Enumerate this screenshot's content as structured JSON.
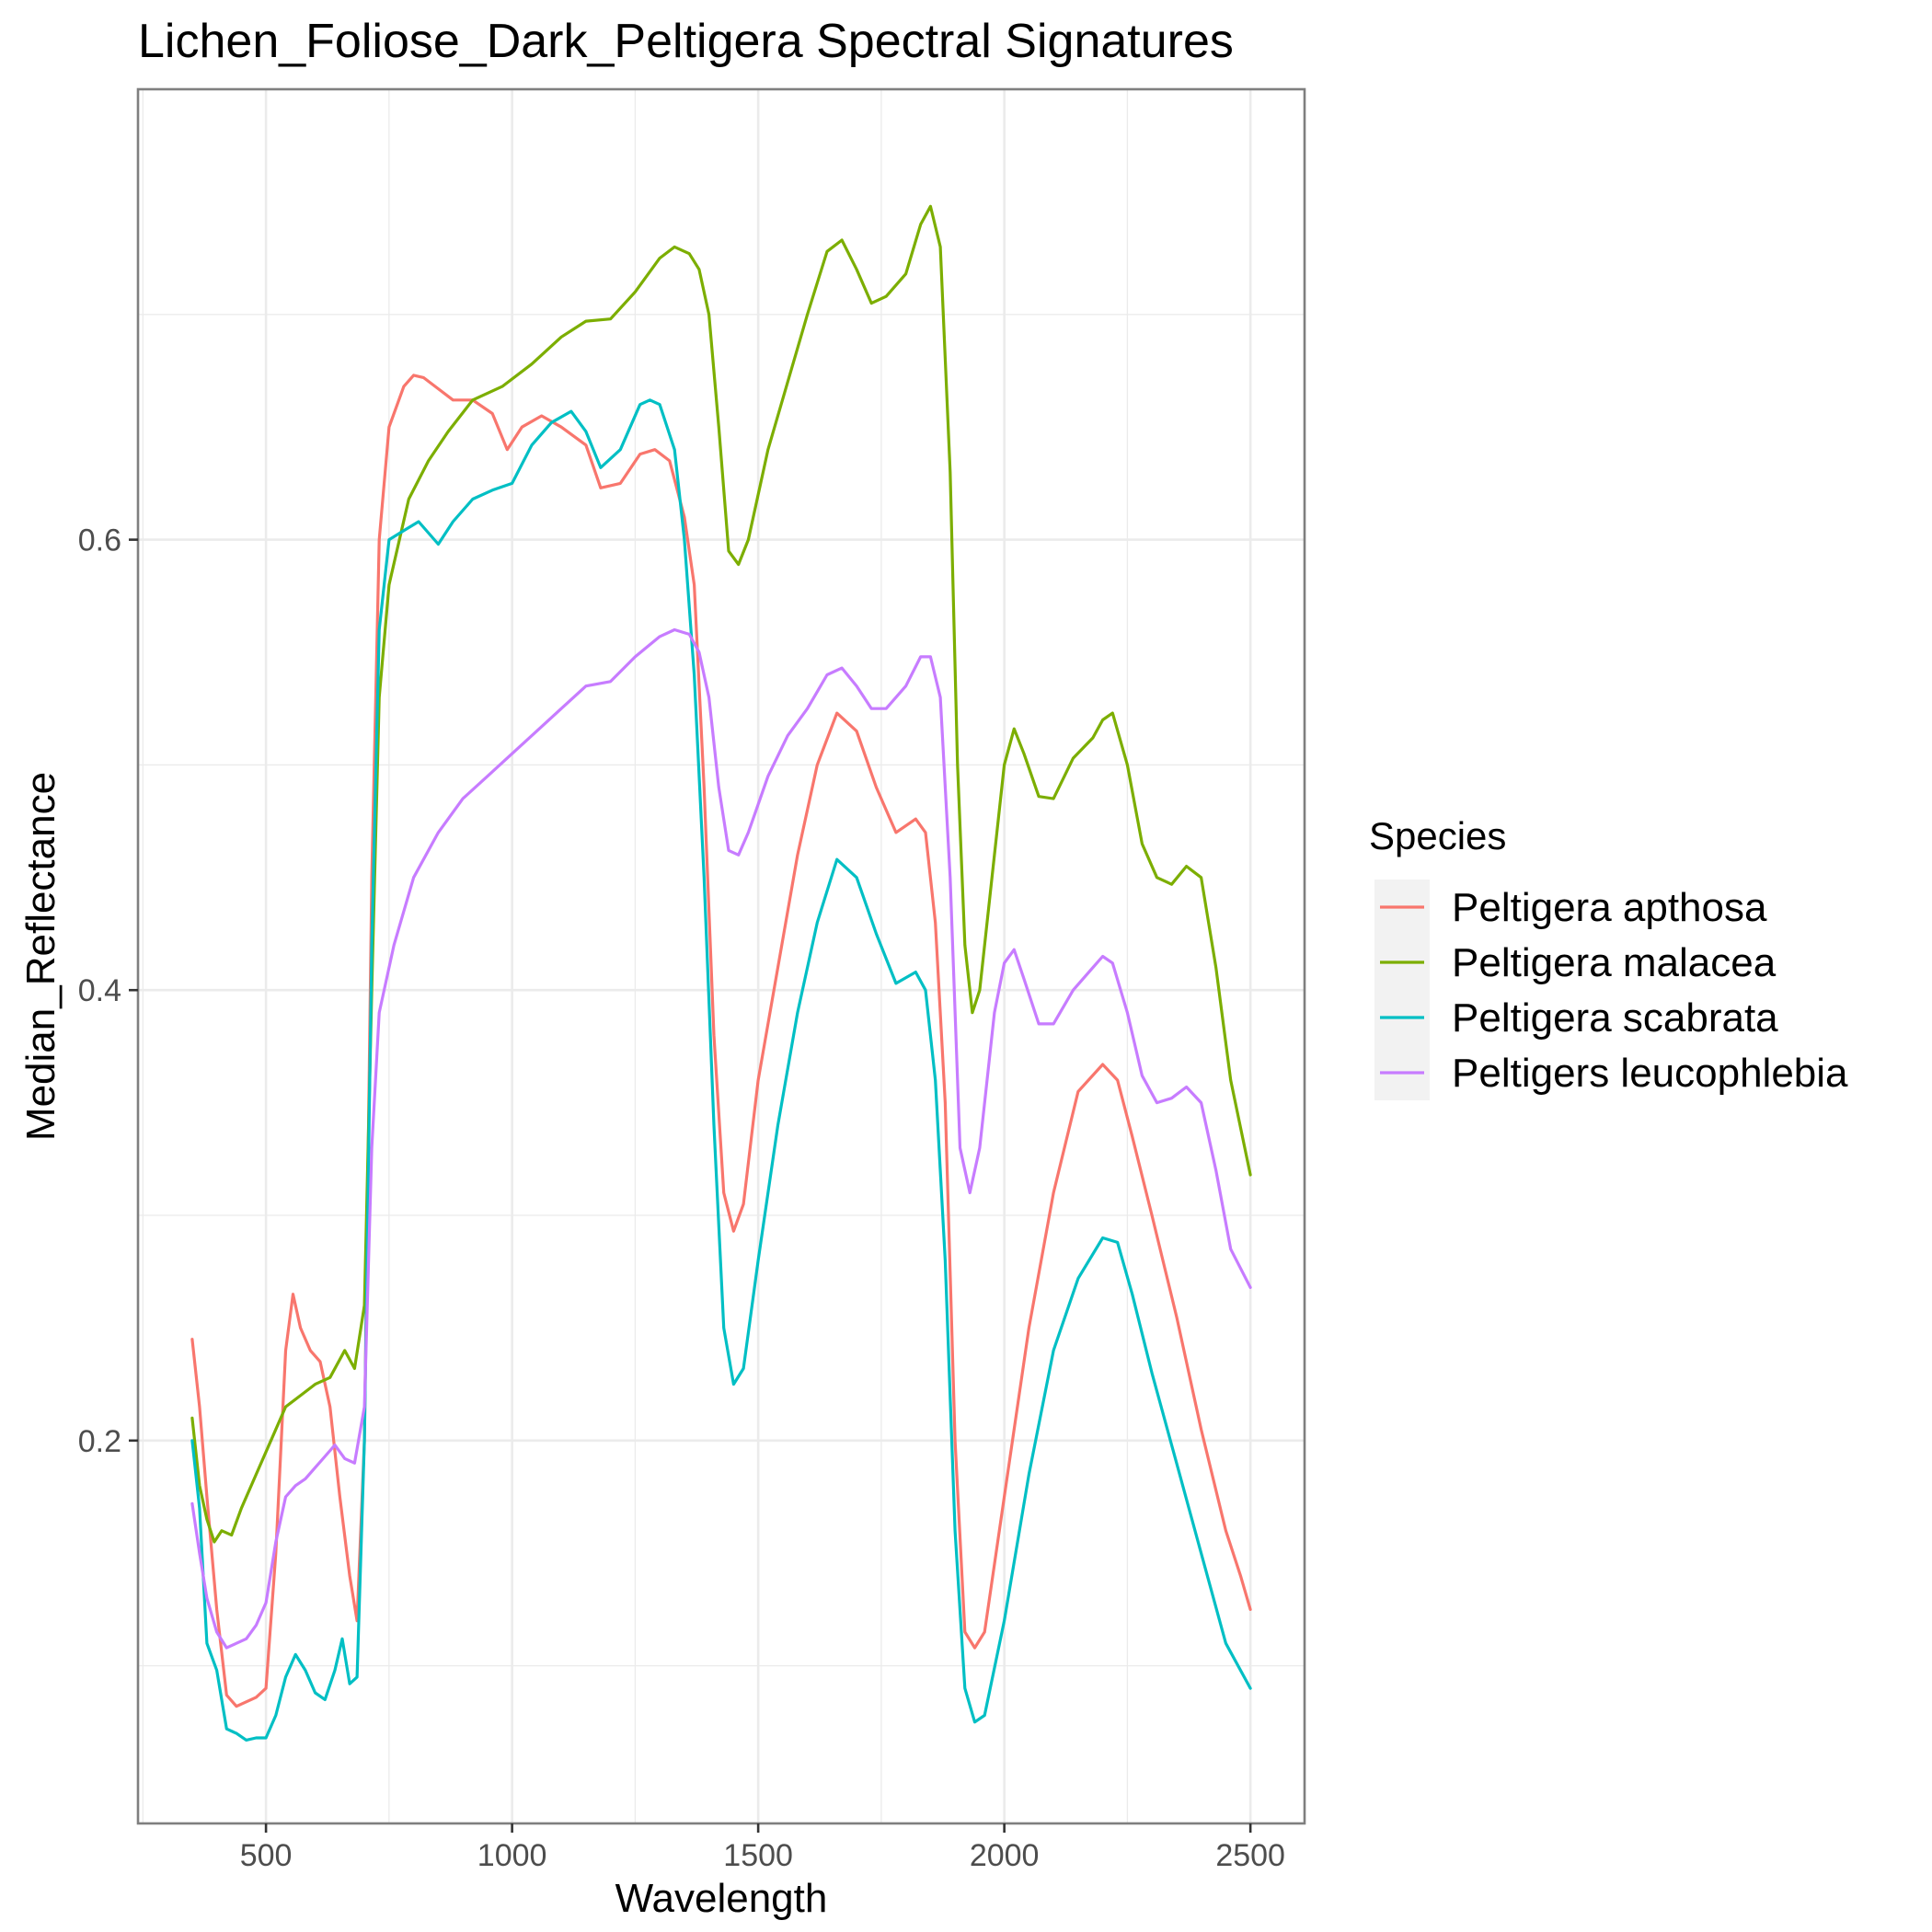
{
  "chart_data": {
    "type": "line",
    "title": "Lichen_Foliose_Dark_Peltigera Spectral Signatures",
    "xlabel": "Wavelength",
    "ylabel": "Median_Reflectance",
    "xlim": [
      240,
      2610
    ],
    "ylim": [
      0.03,
      0.8
    ],
    "x_ticks": [
      500,
      1000,
      1500,
      2000,
      2500
    ],
    "x_tick_labels": [
      "500",
      "1000",
      "1500",
      "2000",
      "2500"
    ],
    "y_ticks": [
      0.2,
      0.4,
      0.6
    ],
    "y_tick_labels": [
      "0.2",
      "0.4",
      "0.6"
    ],
    "grid": true,
    "legend": {
      "title": "Species",
      "position": "right"
    },
    "series": [
      {
        "name": "Peltigera apthosa",
        "color": "#F8766D",
        "points": [
          [
            350,
            0.245
          ],
          [
            365,
            0.215
          ],
          [
            380,
            0.175
          ],
          [
            400,
            0.125
          ],
          [
            420,
            0.087
          ],
          [
            440,
            0.082
          ],
          [
            460,
            0.084
          ],
          [
            480,
            0.086
          ],
          [
            500,
            0.09
          ],
          [
            520,
            0.15
          ],
          [
            540,
            0.24
          ],
          [
            555,
            0.265
          ],
          [
            570,
            0.25
          ],
          [
            590,
            0.24
          ],
          [
            610,
            0.235
          ],
          [
            630,
            0.215
          ],
          [
            650,
            0.175
          ],
          [
            670,
            0.14
          ],
          [
            685,
            0.12
          ],
          [
            700,
            0.2
          ],
          [
            715,
            0.45
          ],
          [
            730,
            0.6
          ],
          [
            750,
            0.65
          ],
          [
            780,
            0.668
          ],
          [
            800,
            0.673
          ],
          [
            820,
            0.672
          ],
          [
            850,
            0.667
          ],
          [
            880,
            0.662
          ],
          [
            920,
            0.662
          ],
          [
            960,
            0.656
          ],
          [
            990,
            0.64
          ],
          [
            1020,
            0.65
          ],
          [
            1060,
            0.655
          ],
          [
            1100,
            0.65
          ],
          [
            1150,
            0.642
          ],
          [
            1180,
            0.623
          ],
          [
            1220,
            0.625
          ],
          [
            1260,
            0.638
          ],
          [
            1290,
            0.64
          ],
          [
            1320,
            0.635
          ],
          [
            1350,
            0.61
          ],
          [
            1370,
            0.58
          ],
          [
            1390,
            0.49
          ],
          [
            1410,
            0.38
          ],
          [
            1430,
            0.31
          ],
          [
            1450,
            0.293
          ],
          [
            1470,
            0.305
          ],
          [
            1500,
            0.36
          ],
          [
            1540,
            0.41
          ],
          [
            1580,
            0.46
          ],
          [
            1620,
            0.5
          ],
          [
            1660,
            0.523
          ],
          [
            1700,
            0.515
          ],
          [
            1740,
            0.49
          ],
          [
            1780,
            0.47
          ],
          [
            1820,
            0.476
          ],
          [
            1840,
            0.47
          ],
          [
            1860,
            0.43
          ],
          [
            1880,
            0.35
          ],
          [
            1900,
            0.2
          ],
          [
            1920,
            0.115
          ],
          [
            1940,
            0.108
          ],
          [
            1960,
            0.115
          ],
          [
            2000,
            0.175
          ],
          [
            2050,
            0.25
          ],
          [
            2100,
            0.31
          ],
          [
            2150,
            0.355
          ],
          [
            2200,
            0.367
          ],
          [
            2230,
            0.36
          ],
          [
            2260,
            0.335
          ],
          [
            2300,
            0.3
          ],
          [
            2350,
            0.255
          ],
          [
            2400,
            0.205
          ],
          [
            2450,
            0.16
          ],
          [
            2480,
            0.14
          ],
          [
            2500,
            0.125
          ]
        ]
      },
      {
        "name": "Peltigera malacea",
        "color": "#7CAE00",
        "points": [
          [
            350,
            0.21
          ],
          [
            365,
            0.18
          ],
          [
            380,
            0.165
          ],
          [
            395,
            0.155
          ],
          [
            410,
            0.16
          ],
          [
            430,
            0.158
          ],
          [
            450,
            0.17
          ],
          [
            480,
            0.185
          ],
          [
            510,
            0.2
          ],
          [
            540,
            0.215
          ],
          [
            570,
            0.22
          ],
          [
            600,
            0.225
          ],
          [
            630,
            0.228
          ],
          [
            660,
            0.24
          ],
          [
            680,
            0.232
          ],
          [
            700,
            0.26
          ],
          [
            715,
            0.4
          ],
          [
            730,
            0.53
          ],
          [
            750,
            0.58
          ],
          [
            790,
            0.618
          ],
          [
            830,
            0.635
          ],
          [
            870,
            0.648
          ],
          [
            920,
            0.662
          ],
          [
            980,
            0.668
          ],
          [
            1040,
            0.678
          ],
          [
            1100,
            0.69
          ],
          [
            1150,
            0.697
          ],
          [
            1200,
            0.698
          ],
          [
            1250,
            0.71
          ],
          [
            1300,
            0.725
          ],
          [
            1330,
            0.73
          ],
          [
            1360,
            0.727
          ],
          [
            1380,
            0.72
          ],
          [
            1400,
            0.7
          ],
          [
            1420,
            0.65
          ],
          [
            1440,
            0.595
          ],
          [
            1460,
            0.589
          ],
          [
            1480,
            0.6
          ],
          [
            1520,
            0.64
          ],
          [
            1560,
            0.67
          ],
          [
            1600,
            0.7
          ],
          [
            1640,
            0.728
          ],
          [
            1670,
            0.733
          ],
          [
            1700,
            0.72
          ],
          [
            1730,
            0.705
          ],
          [
            1760,
            0.708
          ],
          [
            1800,
            0.718
          ],
          [
            1830,
            0.74
          ],
          [
            1850,
            0.748
          ],
          [
            1870,
            0.73
          ],
          [
            1890,
            0.63
          ],
          [
            1905,
            0.5
          ],
          [
            1920,
            0.42
          ],
          [
            1935,
            0.39
          ],
          [
            1950,
            0.4
          ],
          [
            1980,
            0.46
          ],
          [
            2000,
            0.5
          ],
          [
            2020,
            0.516
          ],
          [
            2040,
            0.505
          ],
          [
            2070,
            0.486
          ],
          [
            2100,
            0.485
          ],
          [
            2140,
            0.503
          ],
          [
            2180,
            0.512
          ],
          [
            2200,
            0.52
          ],
          [
            2220,
            0.523
          ],
          [
            2250,
            0.5
          ],
          [
            2280,
            0.465
          ],
          [
            2310,
            0.45
          ],
          [
            2340,
            0.447
          ],
          [
            2370,
            0.455
          ],
          [
            2400,
            0.45
          ],
          [
            2430,
            0.41
          ],
          [
            2460,
            0.36
          ],
          [
            2500,
            0.318
          ]
        ]
      },
      {
        "name": "Peltigera scabrata",
        "color": "#00BFC4",
        "points": [
          [
            350,
            0.2
          ],
          [
            365,
            0.17
          ],
          [
            380,
            0.11
          ],
          [
            400,
            0.098
          ],
          [
            420,
            0.072
          ],
          [
            440,
            0.07
          ],
          [
            460,
            0.067
          ],
          [
            480,
            0.068
          ],
          [
            500,
            0.068
          ],
          [
            520,
            0.078
          ],
          [
            540,
            0.095
          ],
          [
            560,
            0.105
          ],
          [
            580,
            0.098
          ],
          [
            600,
            0.088
          ],
          [
            620,
            0.085
          ],
          [
            640,
            0.098
          ],
          [
            655,
            0.112
          ],
          [
            670,
            0.092
          ],
          [
            685,
            0.095
          ],
          [
            700,
            0.2
          ],
          [
            715,
            0.42
          ],
          [
            730,
            0.56
          ],
          [
            750,
            0.6
          ],
          [
            780,
            0.604
          ],
          [
            810,
            0.608
          ],
          [
            850,
            0.598
          ],
          [
            880,
            0.608
          ],
          [
            920,
            0.618
          ],
          [
            960,
            0.622
          ],
          [
            1000,
            0.625
          ],
          [
            1040,
            0.642
          ],
          [
            1080,
            0.652
          ],
          [
            1120,
            0.657
          ],
          [
            1150,
            0.648
          ],
          [
            1180,
            0.632
          ],
          [
            1220,
            0.64
          ],
          [
            1260,
            0.66
          ],
          [
            1280,
            0.662
          ],
          [
            1300,
            0.66
          ],
          [
            1330,
            0.64
          ],
          [
            1350,
            0.6
          ],
          [
            1370,
            0.54
          ],
          [
            1390,
            0.45
          ],
          [
            1410,
            0.34
          ],
          [
            1430,
            0.25
          ],
          [
            1450,
            0.225
          ],
          [
            1470,
            0.232
          ],
          [
            1500,
            0.28
          ],
          [
            1540,
            0.34
          ],
          [
            1580,
            0.39
          ],
          [
            1620,
            0.43
          ],
          [
            1660,
            0.458
          ],
          [
            1700,
            0.45
          ],
          [
            1740,
            0.425
          ],
          [
            1780,
            0.403
          ],
          [
            1820,
            0.408
          ],
          [
            1840,
            0.4
          ],
          [
            1860,
            0.36
          ],
          [
            1880,
            0.28
          ],
          [
            1900,
            0.16
          ],
          [
            1920,
            0.09
          ],
          [
            1940,
            0.075
          ],
          [
            1960,
            0.078
          ],
          [
            2000,
            0.12
          ],
          [
            2050,
            0.185
          ],
          [
            2100,
            0.24
          ],
          [
            2150,
            0.272
          ],
          [
            2200,
            0.29
          ],
          [
            2230,
            0.288
          ],
          [
            2260,
            0.265
          ],
          [
            2300,
            0.23
          ],
          [
            2350,
            0.19
          ],
          [
            2400,
            0.15
          ],
          [
            2450,
            0.11
          ],
          [
            2500,
            0.09
          ]
        ]
      },
      {
        "name": "Peltigers leucophlebia",
        "color": "#C77CFF",
        "points": [
          [
            350,
            0.172
          ],
          [
            365,
            0.15
          ],
          [
            380,
            0.13
          ],
          [
            400,
            0.115
          ],
          [
            420,
            0.108
          ],
          [
            440,
            0.11
          ],
          [
            460,
            0.112
          ],
          [
            480,
            0.118
          ],
          [
            500,
            0.128
          ],
          [
            520,
            0.155
          ],
          [
            540,
            0.175
          ],
          [
            560,
            0.18
          ],
          [
            580,
            0.183
          ],
          [
            600,
            0.188
          ],
          [
            620,
            0.193
          ],
          [
            640,
            0.198
          ],
          [
            660,
            0.192
          ],
          [
            680,
            0.19
          ],
          [
            700,
            0.215
          ],
          [
            715,
            0.33
          ],
          [
            730,
            0.39
          ],
          [
            760,
            0.42
          ],
          [
            800,
            0.45
          ],
          [
            850,
            0.47
          ],
          [
            900,
            0.485
          ],
          [
            950,
            0.495
          ],
          [
            1000,
            0.505
          ],
          [
            1050,
            0.515
          ],
          [
            1100,
            0.525
          ],
          [
            1150,
            0.535
          ],
          [
            1200,
            0.537
          ],
          [
            1250,
            0.548
          ],
          [
            1300,
            0.557
          ],
          [
            1330,
            0.56
          ],
          [
            1360,
            0.558
          ],
          [
            1380,
            0.55
          ],
          [
            1400,
            0.53
          ],
          [
            1420,
            0.49
          ],
          [
            1440,
            0.462
          ],
          [
            1460,
            0.46
          ],
          [
            1480,
            0.47
          ],
          [
            1520,
            0.495
          ],
          [
            1560,
            0.513
          ],
          [
            1600,
            0.525
          ],
          [
            1640,
            0.54
          ],
          [
            1670,
            0.543
          ],
          [
            1700,
            0.535
          ],
          [
            1730,
            0.525
          ],
          [
            1760,
            0.525
          ],
          [
            1800,
            0.535
          ],
          [
            1830,
            0.548
          ],
          [
            1850,
            0.548
          ],
          [
            1870,
            0.53
          ],
          [
            1890,
            0.45
          ],
          [
            1910,
            0.33
          ],
          [
            1930,
            0.31
          ],
          [
            1950,
            0.33
          ],
          [
            1980,
            0.39
          ],
          [
            2000,
            0.412
          ],
          [
            2020,
            0.418
          ],
          [
            2040,
            0.405
          ],
          [
            2070,
            0.385
          ],
          [
            2100,
            0.385
          ],
          [
            2140,
            0.4
          ],
          [
            2180,
            0.41
          ],
          [
            2200,
            0.415
          ],
          [
            2220,
            0.412
          ],
          [
            2250,
            0.39
          ],
          [
            2280,
            0.362
          ],
          [
            2310,
            0.35
          ],
          [
            2340,
            0.352
          ],
          [
            2370,
            0.357
          ],
          [
            2400,
            0.35
          ],
          [
            2430,
            0.32
          ],
          [
            2460,
            0.285
          ],
          [
            2500,
            0.268
          ]
        ]
      }
    ]
  }
}
